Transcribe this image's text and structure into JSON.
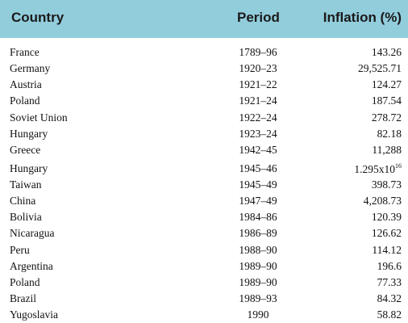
{
  "table": {
    "headers": {
      "country": "Country",
      "period": "Period",
      "inflation": "Inflation (%)"
    },
    "rows": [
      {
        "country": "France",
        "period": "1789–96",
        "inflation": "143.26"
      },
      {
        "country": "Germany",
        "period": "1920–23",
        "inflation": "29,525.71"
      },
      {
        "country": "Austria",
        "period": "1921–22",
        "inflation": "124.27"
      },
      {
        "country": "Poland",
        "period": "1921–24",
        "inflation": "187.54"
      },
      {
        "country": "Soviet Union",
        "period": "1922–24",
        "inflation": "278.72"
      },
      {
        "country": "Hungary",
        "period": "1923–24",
        "inflation": "82.18"
      },
      {
        "country": "Greece",
        "period": "1942–45",
        "inflation": "11,288"
      },
      {
        "country": "Hungary",
        "period": "1945–46",
        "inflation": "1.295x10",
        "inflation_exp": "16"
      },
      {
        "country": "Taiwan",
        "period": "1945–49",
        "inflation": "398.73"
      },
      {
        "country": "China",
        "period": "1947–49",
        "inflation": "4,208.73"
      },
      {
        "country": "Bolivia",
        "period": "1984–86",
        "inflation": "120.39"
      },
      {
        "country": "Nicaragua",
        "period": "1986–89",
        "inflation": "126.62"
      },
      {
        "country": "Peru",
        "period": "1988–90",
        "inflation": "114.12"
      },
      {
        "country": "Argentina",
        "period": "1989–90",
        "inflation": "196.6"
      },
      {
        "country": "Poland",
        "period": "1989–90",
        "inflation": "77.33"
      },
      {
        "country": "Brazil",
        "period": "1989–93",
        "inflation": "84.32"
      },
      {
        "country": "Yugoslavia",
        "period": "1990",
        "inflation": "58.82"
      }
    ]
  },
  "colors": {
    "header_bg": "#92cddc",
    "text": "#111111"
  }
}
